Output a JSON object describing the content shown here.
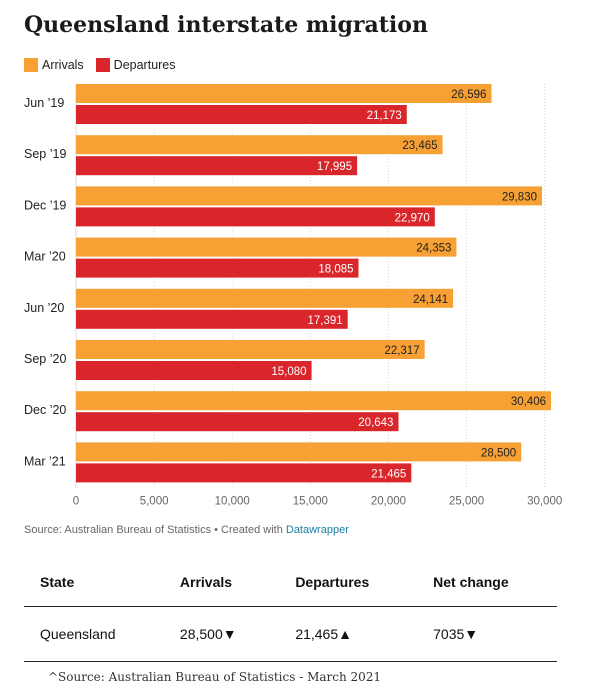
{
  "title": "Queensland interstate migration",
  "colors": {
    "arrivals": "#f7a134",
    "departures": "#d9262b",
    "grid": "#d8d8d8"
  },
  "chart_data": {
    "type": "bar",
    "orientation": "horizontal",
    "title": "Queensland interstate migration",
    "categories": [
      "Jun ’19",
      "Sep ’19",
      "Dec ’19",
      "Mar ’20",
      "Jun ’20",
      "Sep ’20",
      "Dec ’20",
      "Mar ’21"
    ],
    "series": [
      {
        "name": "Arrivals",
        "color": "#f7a134",
        "values": [
          26596,
          23465,
          29830,
          24353,
          24141,
          22317,
          30406,
          28500
        ]
      },
      {
        "name": "Departures",
        "color": "#d9262b",
        "values": [
          21173,
          17995,
          22970,
          18085,
          17391,
          15080,
          20643,
          21465
        ]
      }
    ],
    "x_ticks": [
      0,
      5000,
      10000,
      15000,
      20000,
      25000,
      30000
    ],
    "xlim": [
      0,
      30406
    ],
    "grid": true,
    "legend": "top-left"
  },
  "source": {
    "text": "Source: Australian Bureau of Statistics • Created with ",
    "link_text": "Datawrapper"
  },
  "table": {
    "headers": [
      "State",
      "Arrivals",
      "Departures",
      "Net change"
    ],
    "rows": [
      [
        "Queensland",
        "28,500▼",
        "21,465▲",
        "7035▼"
      ]
    ]
  },
  "footnote": "^Source: Australian Bureau of Statistics - March 2021"
}
